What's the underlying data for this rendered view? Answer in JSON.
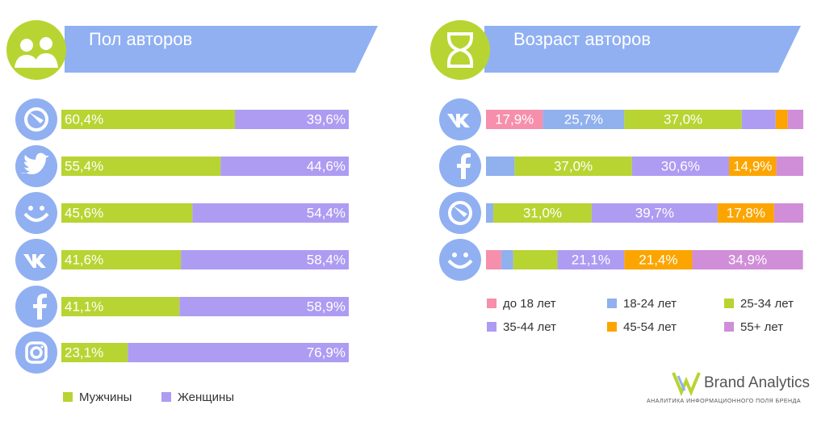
{
  "chart_data": [
    {
      "type": "bar",
      "orientation": "horizontal",
      "stacked": true,
      "title": "Пол авторов",
      "xlim": [
        0,
        100
      ],
      "series": [
        {
          "name": "Мужчины",
          "color": "#b8d432",
          "values": [
            60.4,
            55.4,
            45.6,
            41.6,
            41.1,
            23.1
          ],
          "value_labels": [
            "60,4%",
            "55,4%",
            "45,6%",
            "41,6%",
            "41,1%",
            "23,1%"
          ]
        },
        {
          "name": "Женщины",
          "color": "#ad9cf2",
          "values": [
            39.6,
            44.6,
            54.4,
            58.4,
            58.9,
            76.9
          ],
          "value_labels": [
            "39,6%",
            "44,6%",
            "54,4%",
            "58,4%",
            "58,9%",
            "76,9%"
          ]
        }
      ]
    },
    {
      "type": "bar",
      "orientation": "horizontal",
      "stacked": true,
      "title": "Возраст авторов",
      "xlim": [
        0,
        100
      ],
      "series": [
        {
          "name": "до 18 лет",
          "color": "#f68fab",
          "values": [
            17.9,
            0,
            0,
            4.8
          ],
          "value_labels": [
            "17,9%",
            null,
            null,
            null
          ]
        },
        {
          "name": "18-24 лет",
          "color": "#90b0ee",
          "values": [
            25.7,
            9.0,
            2.3,
            3.8
          ],
          "value_labels": [
            "25,7%",
            null,
            null,
            null
          ]
        },
        {
          "name": "25-34 лет",
          "color": "#b8d432",
          "values": [
            37.0,
            37.0,
            31.0,
            13.9
          ],
          "value_labels": [
            "37,0%",
            "37,0%",
            "31,0%",
            null
          ]
        },
        {
          "name": "35-44 лет",
          "color": "#ad9cf2",
          "values": [
            10.7,
            30.6,
            39.7,
            21.1
          ],
          "value_labels": [
            null,
            "30,6%",
            "39,7%",
            "21,1%"
          ]
        },
        {
          "name": "45-54 лет",
          "color": "#fca500",
          "values": [
            3.8,
            14.9,
            17.8,
            21.4
          ],
          "value_labels": [
            null,
            "14,9%",
            "17,8%",
            "21,4%"
          ]
        },
        {
          "name": "55+ лет",
          "color": "#d08ed8",
          "values": [
            4.9,
            8.5,
            9.2,
            34.9
          ],
          "value_labels": [
            null,
            null,
            null,
            "34,9%"
          ]
        }
      ]
    }
  ],
  "brand": {
    "name": "Brand Analytics",
    "tagline": "АНАЛИТИКА ИНФОРМАЦИОННОГО ПОЛЯ БРЕНДА"
  }
}
